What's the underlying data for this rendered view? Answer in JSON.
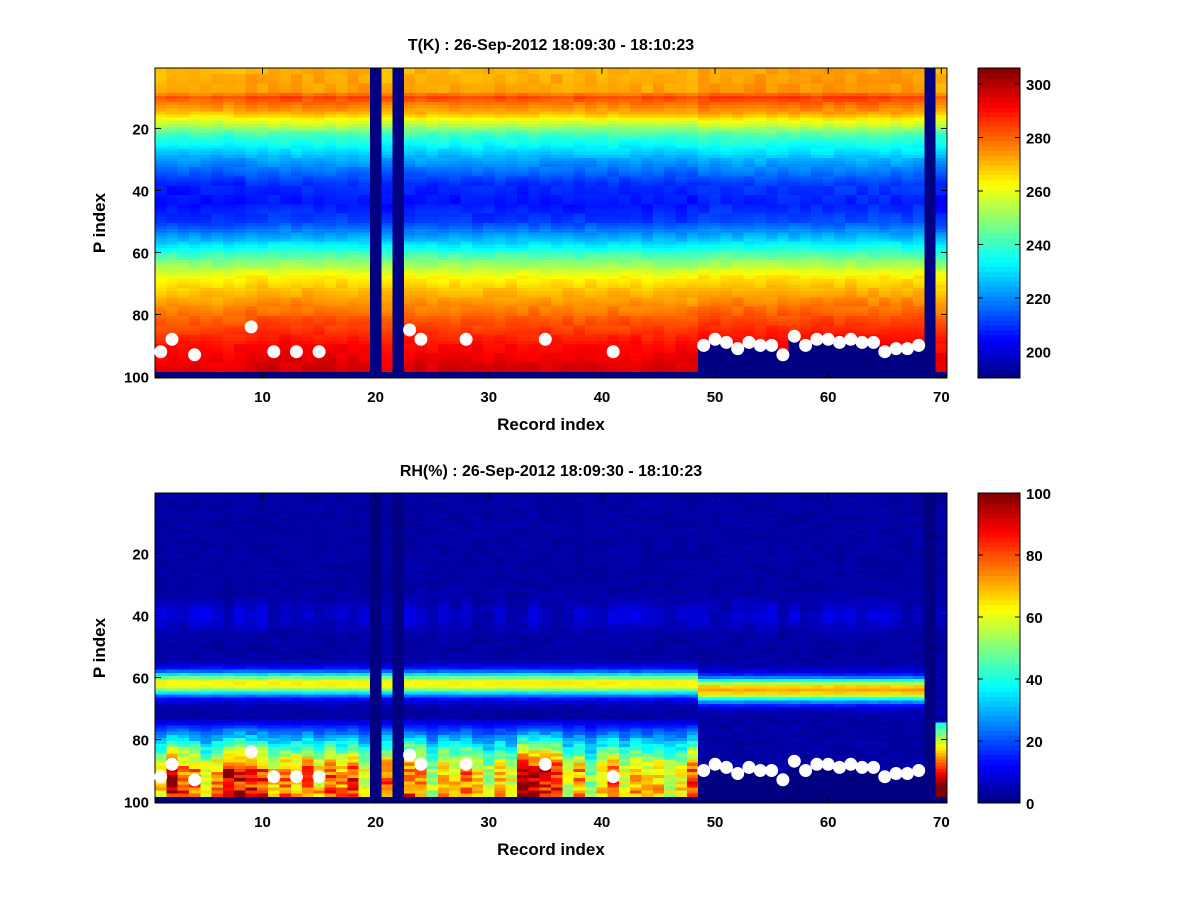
{
  "chart_data": [
    {
      "type": "heatmap",
      "title": "T(K) : 26-Sep-2012 18:09:30 - 18:10:23",
      "xlabel": "Record index",
      "ylabel": "P index",
      "xlim": [
        0.5,
        70.5
      ],
      "ylim": [
        100.5,
        0.5
      ],
      "y_reversed": true,
      "x_ticks": [
        "10",
        "20",
        "30",
        "40",
        "50",
        "60",
        "70"
      ],
      "y_ticks": [
        "20",
        "40",
        "60",
        "80",
        "100"
      ],
      "colorbar": {
        "min": 190,
        "max": 306,
        "ticks": [
          "200",
          "220",
          "240",
          "260",
          "280",
          "300"
        ],
        "colormap": "jet"
      },
      "profile_knots": {
        "p": [
          1,
          8,
          10,
          15,
          22,
          30,
          38,
          44,
          50,
          56,
          60,
          64,
          68,
          72,
          78,
          84,
          90,
          98
        ],
        "value": [
          270,
          272,
          282,
          270,
          240,
          222,
          208,
          205,
          210,
          225,
          238,
          250,
          262,
          268,
          276,
          283,
          290,
          295
        ]
      },
      "column_shift": [
        {
          "from": 1,
          "to": 8,
          "value": 0
        },
        {
          "from": 9,
          "to": 19,
          "value": 2
        },
        {
          "from": 23,
          "to": 48,
          "value": 1
        },
        {
          "from": 49,
          "to": 68,
          "value": 3
        }
      ],
      "missing_columns": [
        20,
        22,
        69
      ],
      "bottom_fill_rows": [
        99,
        100
      ],
      "masked_below_points_from_record": 49,
      "points": [
        [
          1,
          92
        ],
        [
          2,
          88
        ],
        [
          4,
          93
        ],
        [
          9,
          84
        ],
        [
          11,
          92
        ],
        [
          13,
          92
        ],
        [
          15,
          92
        ],
        [
          23,
          85
        ],
        [
          24,
          88
        ],
        [
          28,
          88
        ],
        [
          35,
          88
        ],
        [
          41,
          92
        ],
        [
          49,
          90
        ],
        [
          50,
          88
        ],
        [
          51,
          89
        ],
        [
          52,
          91
        ],
        [
          53,
          89
        ],
        [
          54,
          90
        ],
        [
          55,
          90
        ],
        [
          56,
          93
        ],
        [
          57,
          87
        ],
        [
          58,
          90
        ],
        [
          59,
          88
        ],
        [
          60,
          88
        ],
        [
          61,
          89
        ],
        [
          62,
          88
        ],
        [
          63,
          89
        ],
        [
          64,
          89
        ],
        [
          65,
          92
        ],
        [
          66,
          91
        ],
        [
          67,
          91
        ],
        [
          68,
          90
        ]
      ]
    },
    {
      "type": "heatmap",
      "title": "RH(%) : 26-Sep-2012 18:09:30 - 18:10:23",
      "xlabel": "Record index",
      "ylabel": "P index",
      "xlim": [
        0.5,
        70.5
      ],
      "ylim": [
        100.5,
        0.5
      ],
      "y_reversed": true,
      "x_ticks": [
        "10",
        "20",
        "30",
        "40",
        "50",
        "60",
        "70"
      ],
      "y_ticks": [
        "20",
        "40",
        "60",
        "80",
        "100"
      ],
      "colorbar": {
        "min": 0,
        "max": 100,
        "ticks": [
          "0",
          "20",
          "40",
          "60",
          "80",
          "100"
        ],
        "colormap": "jet"
      },
      "band_levels": [
        {
          "from": 1,
          "to": 48,
          "value": 60
        },
        {
          "from": 49,
          "to": 68,
          "value": 68
        }
      ],
      "bottom_values": [
        70,
        95,
        85,
        80,
        60,
        75,
        100,
        95,
        92,
        88,
        70,
        78,
        75,
        85,
        70,
        82,
        75,
        90,
        60,
        0,
        80,
        0,
        85,
        80,
        55,
        75,
        70,
        80,
        65,
        55,
        70,
        60,
        100,
        100,
        95,
        92,
        60,
        75,
        50,
        70,
        85,
        60,
        75,
        65,
        70,
        60,
        65,
        88
      ],
      "missing_columns": [
        20,
        22,
        69
      ],
      "bottom_fill_rows": [
        99,
        100
      ],
      "masked_below_points_from_record": 49,
      "points": [
        [
          1,
          92
        ],
        [
          2,
          88
        ],
        [
          4,
          93
        ],
        [
          9,
          84
        ],
        [
          11,
          92
        ],
        [
          13,
          92
        ],
        [
          15,
          92
        ],
        [
          23,
          85
        ],
        [
          24,
          88
        ],
        [
          28,
          88
        ],
        [
          35,
          88
        ],
        [
          41,
          92
        ],
        [
          49,
          90
        ],
        [
          50,
          88
        ],
        [
          51,
          89
        ],
        [
          52,
          91
        ],
        [
          53,
          89
        ],
        [
          54,
          90
        ],
        [
          55,
          90
        ],
        [
          56,
          93
        ],
        [
          57,
          87
        ],
        [
          58,
          90
        ],
        [
          59,
          88
        ],
        [
          60,
          88
        ],
        [
          61,
          89
        ],
        [
          62,
          88
        ],
        [
          63,
          89
        ],
        [
          64,
          89
        ],
        [
          65,
          92
        ],
        [
          66,
          91
        ],
        [
          67,
          91
        ],
        [
          68,
          90
        ]
      ]
    }
  ]
}
